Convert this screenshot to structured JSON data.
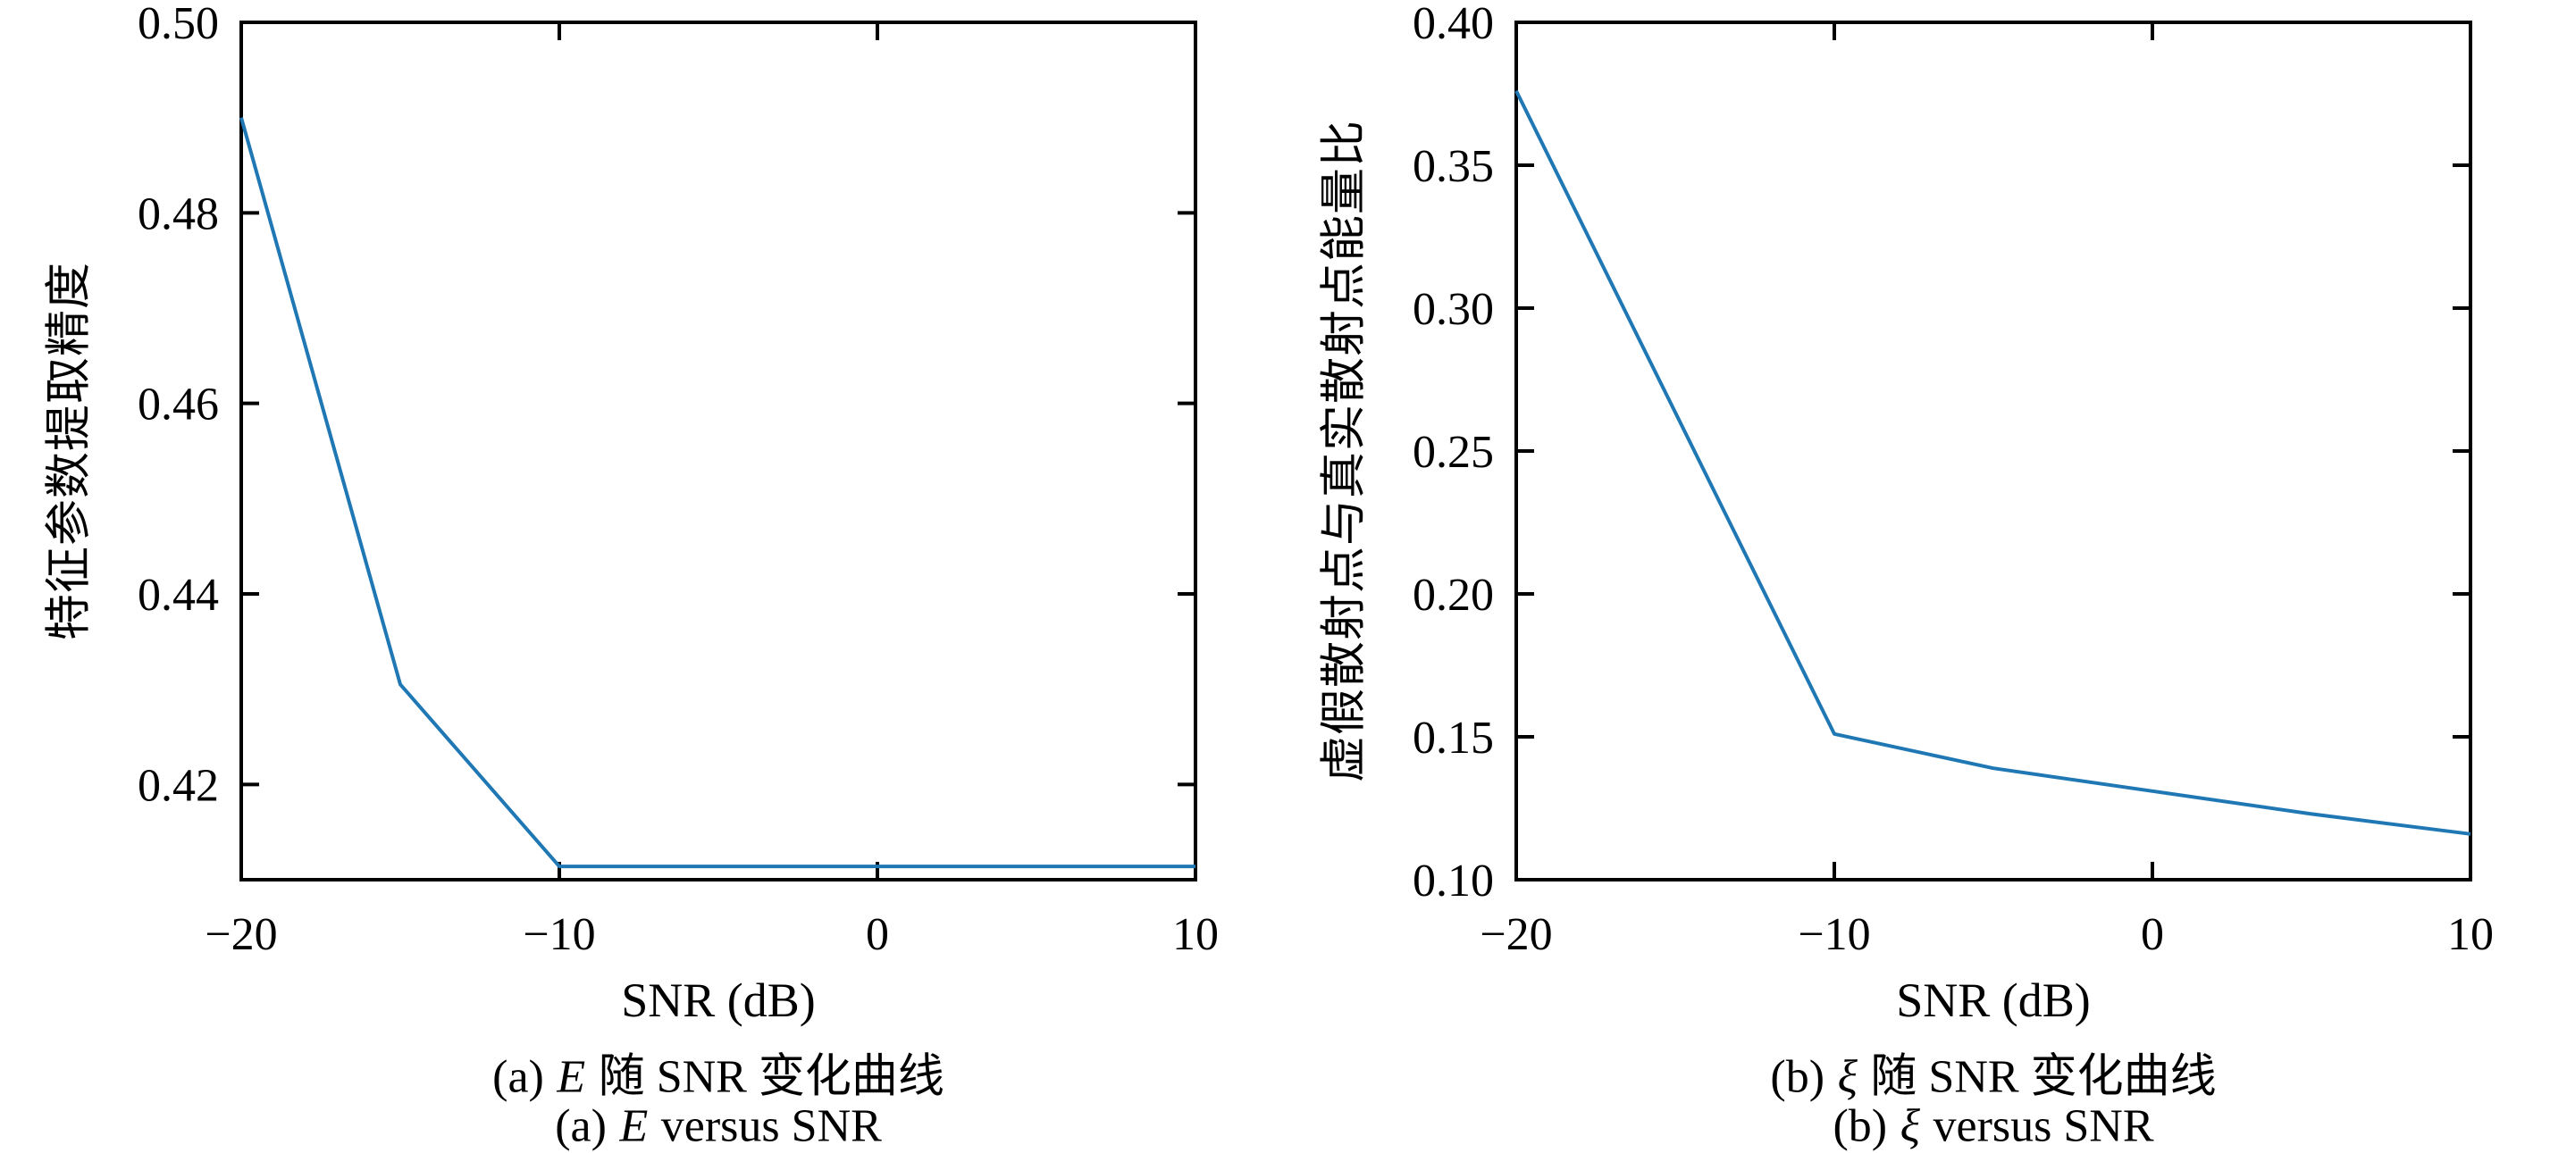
{
  "figure": {
    "background": "#ffffff",
    "axis_color": "#000000",
    "line_color": "#1f77b4"
  },
  "chart_data": [
    {
      "id": "a",
      "type": "line",
      "xlabel": "SNR (dB)",
      "ylabel": "特征参数提取精度",
      "xlim": [
        -20,
        10
      ],
      "ylim": [
        0.41,
        0.5
      ],
      "xticks": {
        "values": [
          -20,
          -10,
          0,
          10
        ],
        "labels": [
          "−20",
          "−10",
          "0",
          "10"
        ]
      },
      "yticks": {
        "values": [
          0.42,
          0.44,
          0.46,
          0.48,
          0.5
        ],
        "labels": [
          "0.42",
          "0.44",
          "0.46",
          "0.48",
          "0.50"
        ]
      },
      "grid": false,
      "legend": null,
      "line_color": "#1f77b4",
      "x": [
        -20,
        -15,
        -10,
        -5,
        0,
        5,
        10
      ],
      "y": [
        0.49,
        0.4305,
        0.4114,
        0.4114,
        0.4114,
        0.4114,
        0.4114
      ],
      "caption_cn": {
        "index": "(a)",
        "symbol": "E",
        "text": "随 SNR 变化曲线"
      },
      "caption_en": {
        "index": "(a)",
        "symbol": "E",
        "text": "versus SNR"
      }
    },
    {
      "id": "b",
      "type": "line",
      "xlabel": "SNR (dB)",
      "ylabel": "虚假散射点与真实散射点能量比",
      "xlim": [
        -20,
        10
      ],
      "ylim": [
        0.1,
        0.4
      ],
      "xticks": {
        "values": [
          -20,
          -10,
          0,
          10
        ],
        "labels": [
          "−20",
          "−10",
          "0",
          "10"
        ]
      },
      "yticks": {
        "values": [
          0.1,
          0.15,
          0.2,
          0.25,
          0.3,
          0.35,
          0.4
        ],
        "labels": [
          "0.10",
          "0.15",
          "0.20",
          "0.25",
          "0.30",
          "0.35",
          "0.40"
        ]
      },
      "grid": false,
      "legend": null,
      "line_color": "#1f77b4",
      "x": [
        -20,
        -15,
        -10,
        -5,
        0,
        5,
        10
      ],
      "y": [
        0.376,
        0.2635,
        0.151,
        0.139,
        0.131,
        0.123,
        0.116
      ],
      "caption_cn": {
        "index": "(b)",
        "symbol": "ξ",
        "text": "随 SNR 变化曲线"
      },
      "caption_en": {
        "index": "(b)",
        "symbol": "ξ",
        "text": "versus SNR"
      }
    }
  ]
}
